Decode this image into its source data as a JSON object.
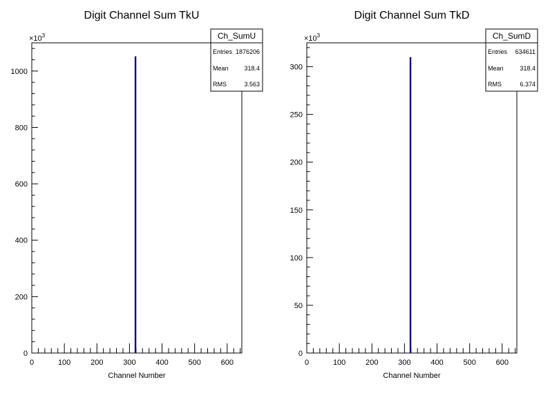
{
  "chart_data": [
    {
      "type": "histogram",
      "title": "Digit Channel Sum TkU",
      "xlabel": "Channel Number",
      "ylabel": "",
      "xlim": [
        0,
        645
      ],
      "ylim": [
        0,
        1100
      ],
      "y_multiplier": "×10",
      "y_multiplier_exp": "3",
      "xticks": [
        "0",
        "100",
        "200",
        "300",
        "400",
        "500",
        "600"
      ],
      "yticks": [
        "0",
        "200",
        "400",
        "600",
        "800",
        "1000"
      ],
      "bins": [
        {
          "x": 318.4,
          "value": 1052
        }
      ],
      "bar_color": "#000080",
      "stats": {
        "name": "Ch_SumU",
        "entries_label": "Entries",
        "entries": "1876206",
        "mean_label": "Mean",
        "mean": "318.4",
        "rms_label": "RMS",
        "rms": "3.563"
      }
    },
    {
      "type": "histogram",
      "title": "Digit Channel Sum TkD",
      "xlabel": "Channel Number",
      "ylabel": "",
      "xlim": [
        0,
        645
      ],
      "ylim": [
        0,
        325
      ],
      "y_multiplier": "×10",
      "y_multiplier_exp": "3",
      "xticks": [
        "0",
        "100",
        "200",
        "300",
        "400",
        "500",
        "600"
      ],
      "yticks": [
        "0",
        "50",
        "100",
        "150",
        "200",
        "250",
        "300"
      ],
      "bins": [
        {
          "x": 318.4,
          "value": 310
        }
      ],
      "bar_color": "#000080",
      "stats": {
        "name": "Ch_SumD",
        "entries_label": "Entries",
        "entries": "634611",
        "mean_label": "Mean",
        "mean": "318.4",
        "rms_label": "RMS",
        "rms": "6.374"
      }
    }
  ]
}
